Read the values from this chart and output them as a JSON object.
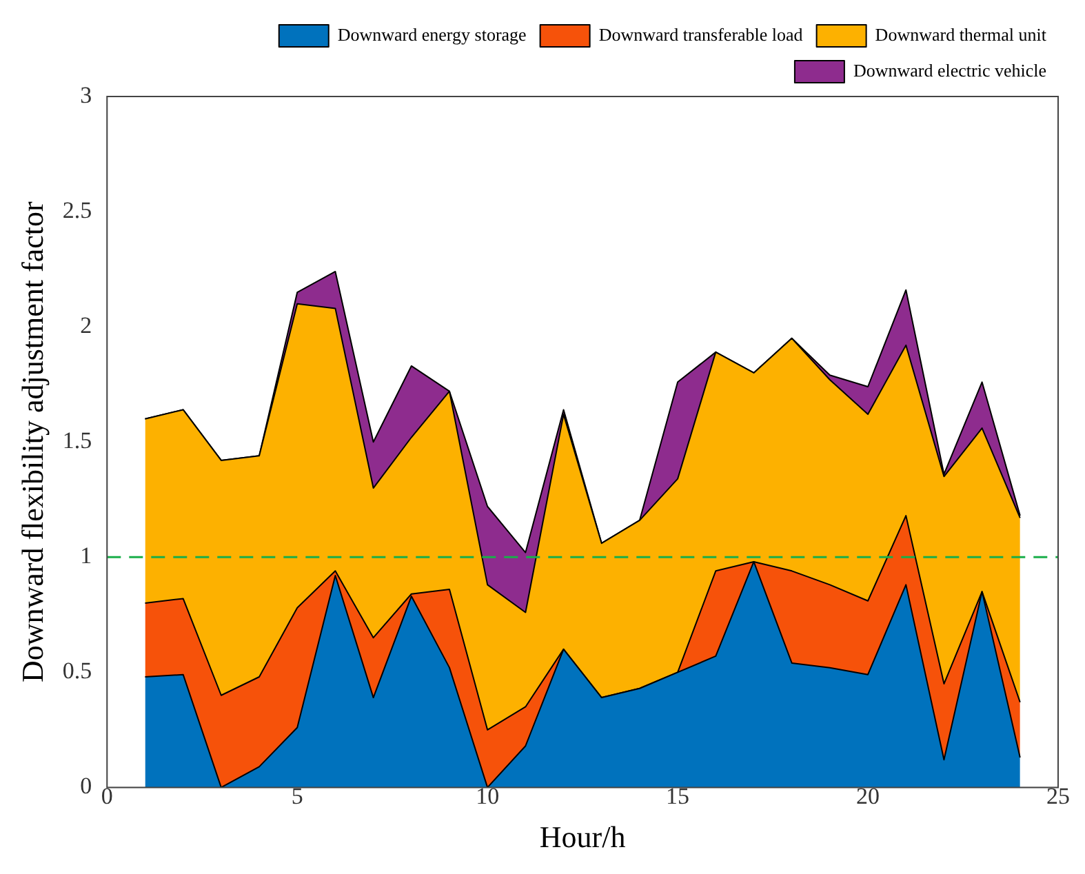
{
  "chart_data": {
    "type": "area",
    "stacked": true,
    "xlabel": "Hour/h",
    "ylabel": "Downward flexibility adjustment factor",
    "x": [
      1,
      2,
      3,
      4,
      5,
      6,
      7,
      8,
      9,
      10,
      11,
      12,
      13,
      14,
      15,
      16,
      17,
      18,
      19,
      20,
      21,
      22,
      23,
      24
    ],
    "series": [
      {
        "name": "Downward energy storage",
        "color": "#0072bd",
        "values": [
          0.48,
          0.49,
          0,
          0.09,
          0.26,
          0.92,
          0.39,
          0.83,
          0.52,
          0,
          0.18,
          0.6,
          0.39,
          0.43,
          0.5,
          0.57,
          0.98,
          0.54,
          0.52,
          0.49,
          0.88,
          0.12,
          0.85,
          0.13
        ]
      },
      {
        "name": "Downward transferable load",
        "color": "#f6520a",
        "values": [
          0.32,
          0.33,
          0.4,
          0.39,
          0.52,
          0.02,
          0.26,
          0.01,
          0.34,
          0.25,
          0.17,
          0,
          0,
          0,
          0,
          0.37,
          0,
          0.4,
          0.36,
          0.32,
          0.3,
          0.33,
          0,
          0.24
        ]
      },
      {
        "name": "Downward thermal unit",
        "color": "#fdb100",
        "values": [
          0.8,
          0.82,
          1.02,
          0.96,
          1.32,
          1.14,
          0.65,
          0.68,
          0.86,
          0.63,
          0.41,
          1.02,
          0.67,
          0.73,
          0.84,
          0.95,
          0.82,
          1.01,
          0.89,
          0.81,
          0.74,
          0.9,
          0.71,
          0.8
        ]
      },
      {
        "name": "Downward electric vehicle",
        "color": "#8e2c8e",
        "values": [
          0,
          0,
          0,
          0,
          0.05,
          0.16,
          0.2,
          0.31,
          0,
          0.34,
          0.26,
          0.02,
          0,
          0,
          0.42,
          0,
          0,
          0,
          0.02,
          0.12,
          0.24,
          0.01,
          0.2,
          0.01
        ]
      }
    ],
    "xlim": [
      0,
      25
    ],
    "xticks": [
      0,
      5,
      10,
      15,
      20,
      25
    ],
    "ylim": [
      0,
      3
    ],
    "yticks": [
      0,
      0.5,
      1,
      1.5,
      2,
      2.5,
      3
    ],
    "ref_lines": [
      {
        "axis": "y",
        "value": 1,
        "color": "#1aae4a",
        "line_style": "dashed"
      }
    ],
    "grid": false,
    "legend": "top right",
    "marker": "none",
    "line_style": "solid"
  }
}
